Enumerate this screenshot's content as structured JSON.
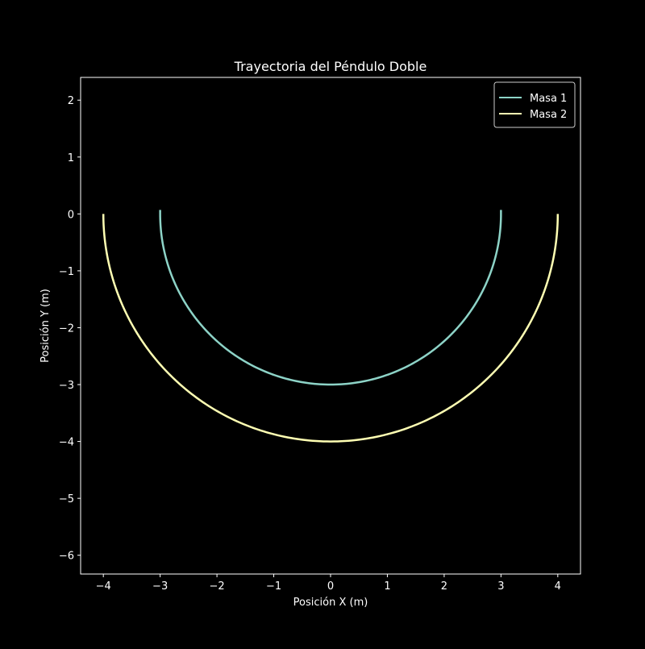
{
  "chart_data": {
    "type": "line",
    "title": "Trayectoria del Péndulo Doble",
    "xlabel": "Posición X (m)",
    "ylabel": "Posición Y (m)",
    "xlim": [
      -4.4,
      4.4
    ],
    "ylim": [
      -6.33,
      2.4
    ],
    "xticks": [
      -4,
      -3,
      -2,
      -1,
      0,
      1,
      2,
      3,
      4
    ],
    "yticks": [
      2,
      1,
      0,
      -1,
      -2,
      -3,
      -4,
      -5,
      -6
    ],
    "xtick_labels": [
      "−4",
      "−3",
      "−2",
      "−1",
      "0",
      "1",
      "2",
      "3",
      "4"
    ],
    "ytick_labels": [
      "2",
      "1",
      "0",
      "−1",
      "−2",
      "−3",
      "−4",
      "−5",
      "−6"
    ],
    "grid": false,
    "legend_position": "top-right",
    "series": [
      {
        "name": "Masa 1",
        "color": "#8dd3c7",
        "radius": 3,
        "theta_range_deg": [
          180,
          360
        ],
        "endpoint_y": 0.07
      },
      {
        "name": "Masa 2",
        "color": "#ffffb3",
        "radius": 4,
        "theta_range_deg": [
          180,
          360
        ],
        "endpoint_y": 0.0
      }
    ]
  }
}
